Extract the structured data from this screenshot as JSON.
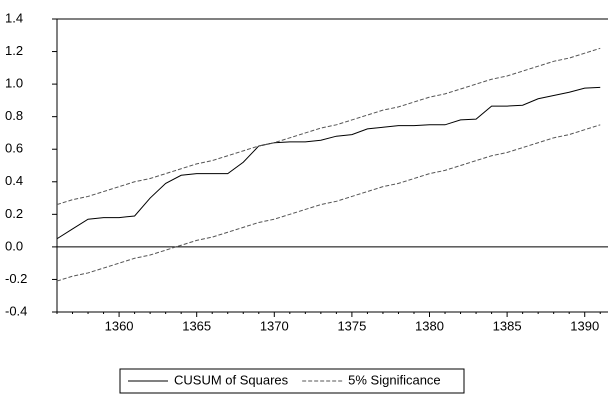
{
  "chart_data": {
    "type": "line",
    "x": [
      1356,
      1357,
      1358,
      1359,
      1360,
      1361,
      1362,
      1363,
      1364,
      1365,
      1366,
      1367,
      1368,
      1369,
      1370,
      1371,
      1372,
      1373,
      1374,
      1375,
      1376,
      1377,
      1378,
      1379,
      1380,
      1381,
      1382,
      1383,
      1384,
      1385,
      1386,
      1387,
      1388,
      1389,
      1390,
      1391
    ],
    "xlim": [
      1356,
      1391.5
    ],
    "xticks": [
      1360,
      1365,
      1370,
      1375,
      1380,
      1385,
      1390
    ],
    "ylim": [
      -0.4,
      1.4
    ],
    "yticks": [
      -0.4,
      -0.2,
      {
        "value": 0,
        "label": "0.0"
      },
      0.2,
      0.4,
      0.6,
      0.8,
      {
        "value": 1,
        "label": "1.0"
      },
      1.2,
      1.4
    ],
    "hline": 0,
    "series": [
      {
        "name": "CUSUM of Squares",
        "color": "#000000",
        "dash": false,
        "values": [
          0.05,
          0.11,
          0.17,
          0.18,
          0.18,
          0.19,
          0.3,
          0.39,
          0.44,
          0.45,
          0.45,
          0.45,
          0.52,
          0.62,
          0.64,
          0.645,
          0.645,
          0.655,
          0.68,
          0.69,
          0.725,
          0.735,
          0.745,
          0.745,
          0.75,
          0.75,
          0.78,
          0.785,
          0.865,
          0.865,
          0.87,
          0.91,
          0.93,
          0.95,
          0.975,
          0.98
        ]
      },
      {
        "name": "5% Significance",
        "color": "#555555",
        "dash": true,
        "upper": [
          0.26,
          0.29,
          0.31,
          0.34,
          0.37,
          0.4,
          0.42,
          0.45,
          0.48,
          0.51,
          0.53,
          0.56,
          0.59,
          0.62,
          0.64,
          0.67,
          0.7,
          0.73,
          0.75,
          0.78,
          0.81,
          0.84,
          0.86,
          0.89,
          0.92,
          0.94,
          0.97,
          1.0,
          1.03,
          1.05,
          1.08,
          1.11,
          1.14,
          1.16,
          1.19,
          1.22
        ],
        "lower": [
          -0.21,
          -0.18,
          -0.16,
          -0.13,
          -0.1,
          -0.07,
          -0.05,
          -0.02,
          0.01,
          0.04,
          0.06,
          0.09,
          0.12,
          0.15,
          0.17,
          0.2,
          0.23,
          0.26,
          0.28,
          0.31,
          0.34,
          0.37,
          0.39,
          0.42,
          0.45,
          0.47,
          0.5,
          0.53,
          0.56,
          0.58,
          0.61,
          0.64,
          0.67,
          0.69,
          0.72,
          0.75
        ]
      }
    ]
  }
}
